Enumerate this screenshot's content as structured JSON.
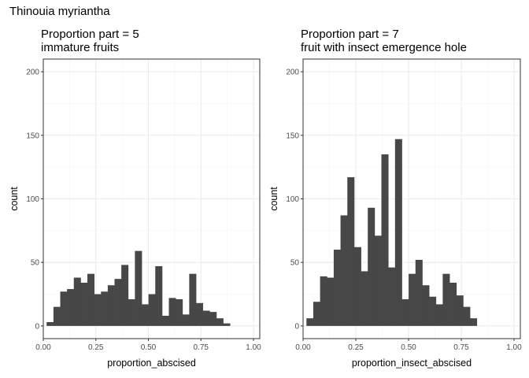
{
  "title": "Thinouia myriantha",
  "colors": {
    "bar": "#474747",
    "grid_major": "#ebebeb",
    "grid_minor": "#f5f5f5",
    "border": "#333333"
  },
  "chart_data": [
    {
      "type": "bar",
      "title": "Proportion part = 5",
      "subtitle": "immature fruits",
      "xlabel": "proportion_abscised",
      "ylabel": "count",
      "xlim": [
        0,
        1.03
      ],
      "ylim": [
        -10,
        210
      ],
      "x_ticks": [
        0,
        0.25,
        0.5,
        0.75,
        1
      ],
      "x_tick_labels": [
        "0.00",
        "0.25",
        "0.50",
        "0.75",
        "1.00"
      ],
      "y_ticks": [
        0,
        50,
        100,
        150,
        200
      ],
      "y_tick_labels": [
        "0",
        "50",
        "100",
        "150",
        "200"
      ],
      "grid": true,
      "bin_width": 0.0323,
      "bin_start": 0.016,
      "values": [
        3,
        15,
        27,
        29,
        38,
        34,
        41,
        25,
        27,
        32,
        37,
        48,
        21,
        59,
        17,
        25,
        47,
        8,
        22,
        21,
        9,
        41,
        18,
        12,
        11,
        6,
        2
      ]
    },
    {
      "type": "bar",
      "title": "Proportion part = 7",
      "subtitle": "fruit with insect emergence hole",
      "xlabel": "proportion_insect_abscised",
      "ylabel": "count",
      "xlim": [
        0,
        1.03
      ],
      "ylim": [
        -10,
        210
      ],
      "x_ticks": [
        0,
        0.25,
        0.5,
        0.75,
        1
      ],
      "x_tick_labels": [
        "0.00",
        "0.25",
        "0.50",
        "0.75",
        "1.00"
      ],
      "y_ticks": [
        0,
        50,
        100,
        150,
        200
      ],
      "y_tick_labels": [
        "0",
        "50",
        "100",
        "150",
        "200"
      ],
      "grid": true,
      "bin_width": 0.0323,
      "bin_start": 0.016,
      "values": [
        6,
        19,
        39,
        38,
        60,
        87,
        117,
        62,
        43,
        93,
        71,
        135,
        46,
        147,
        21,
        41,
        52,
        32,
        23,
        17,
        41,
        34,
        24,
        15,
        6
      ]
    }
  ]
}
